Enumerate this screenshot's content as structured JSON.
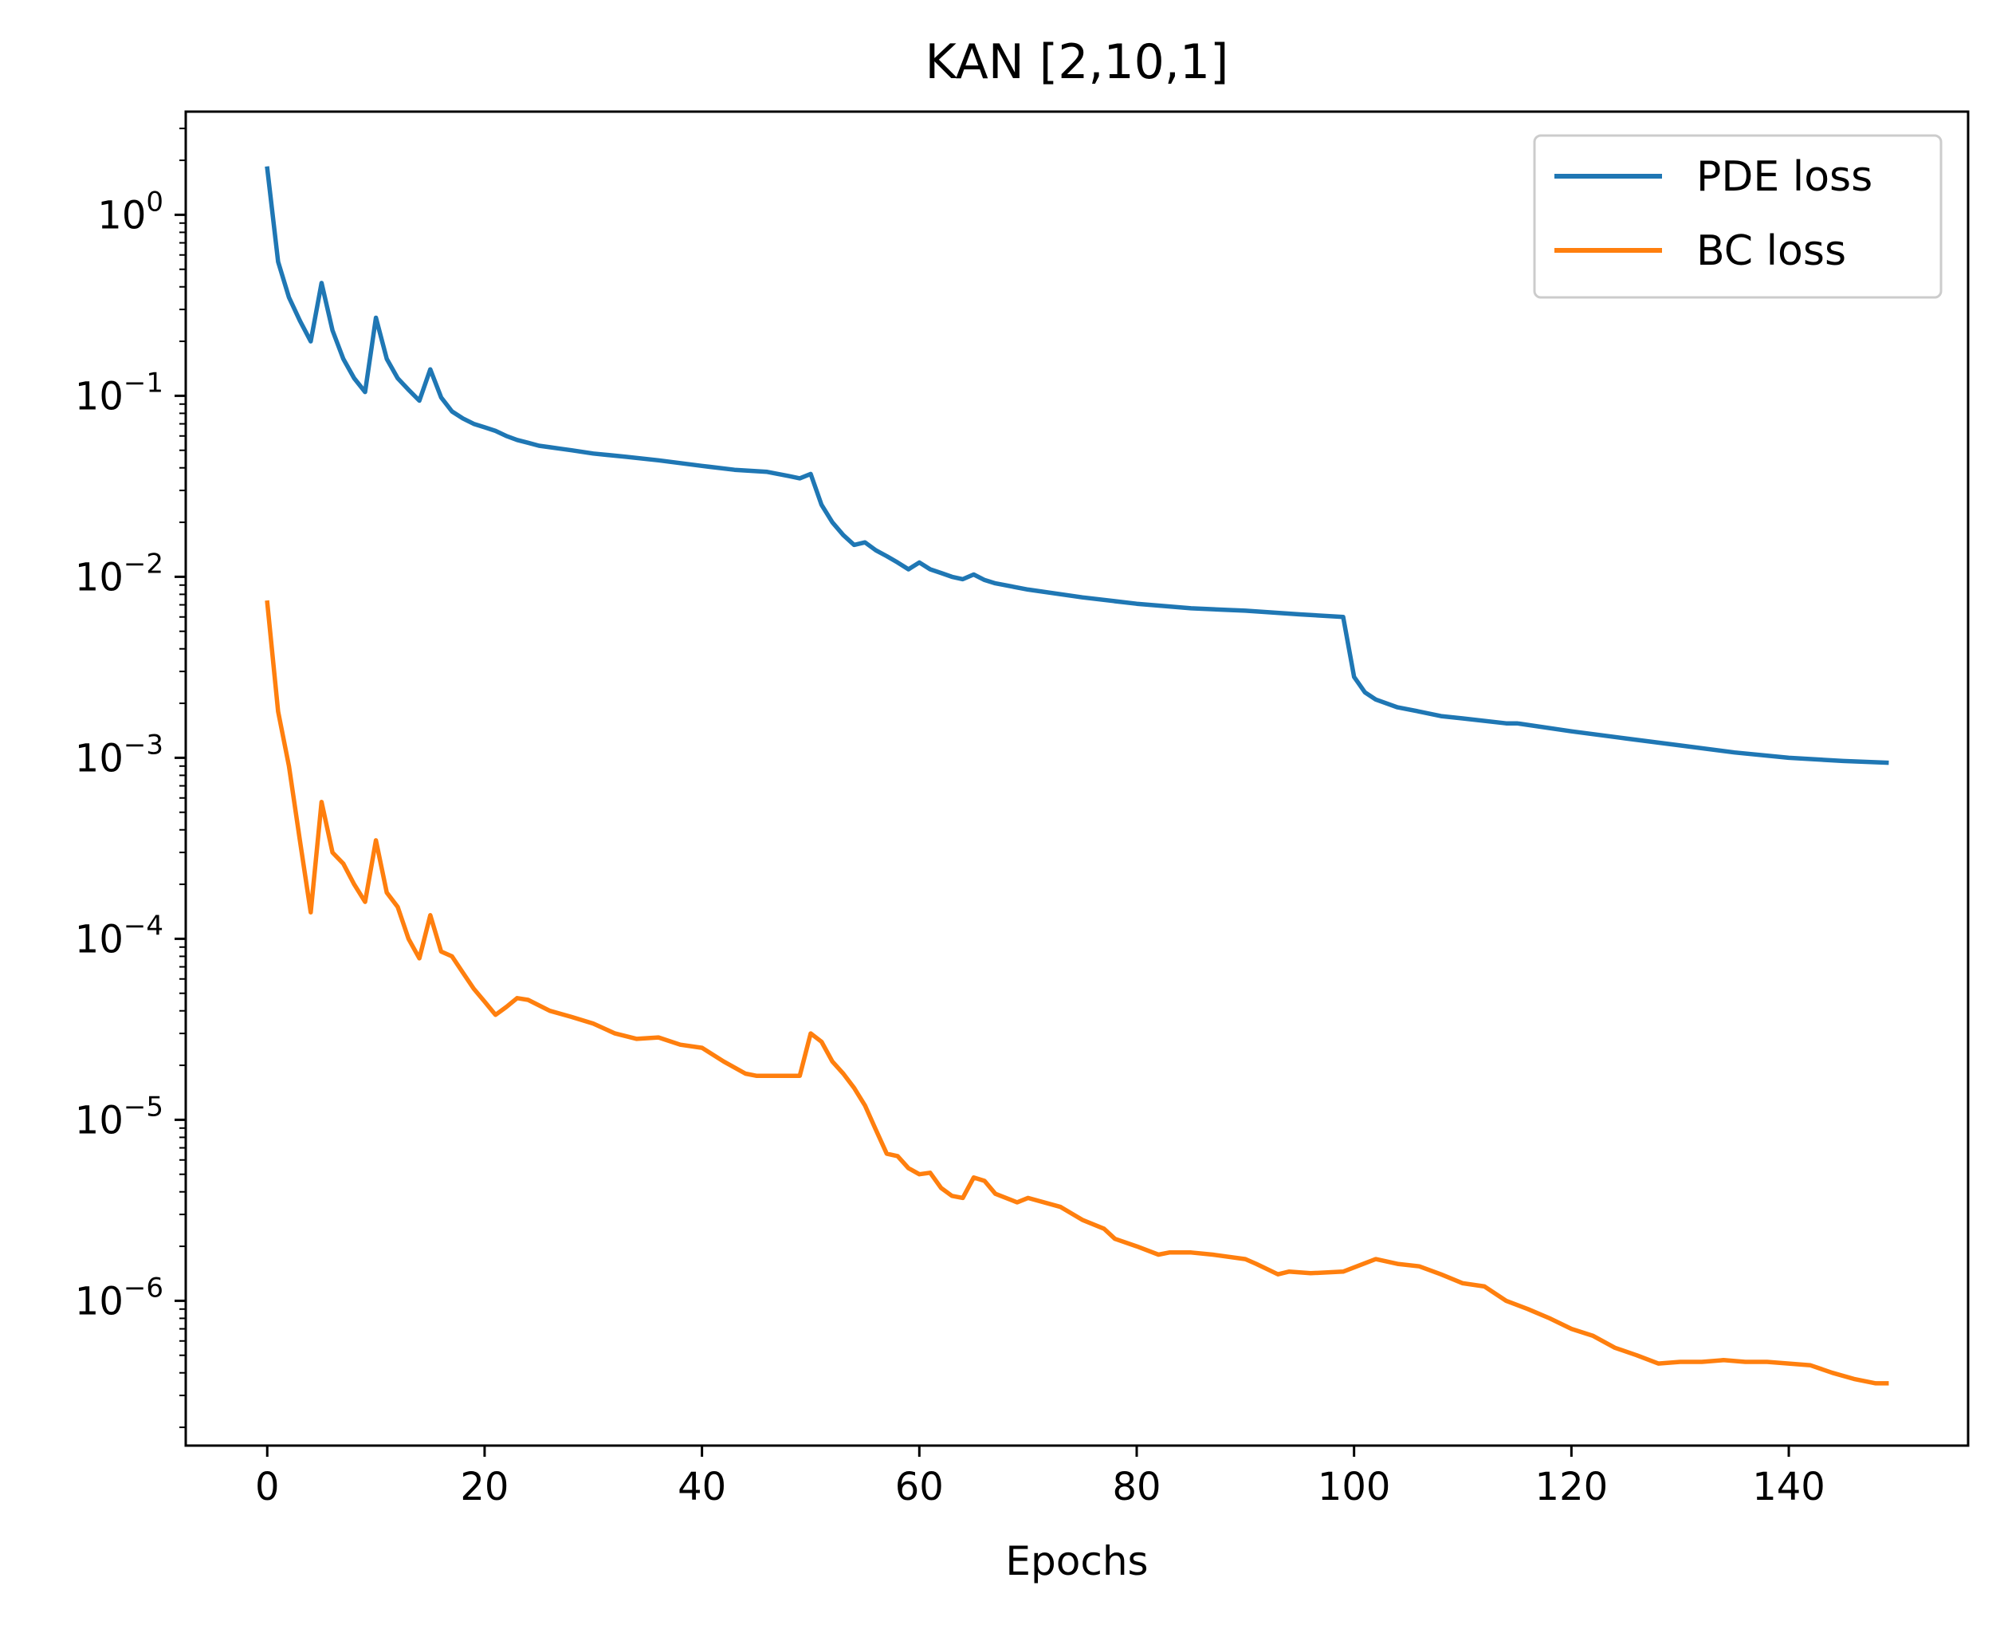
{
  "chart_data": {
    "type": "line",
    "title": "KAN [2,10,1]",
    "xlabel": "Epochs",
    "ylabel": "",
    "yscale": "log",
    "xlim": [
      -7.5,
      156.5
    ],
    "ylim_log10": [
      -6.8,
      0.57
    ],
    "x_ticks": [
      0,
      20,
      40,
      60,
      80,
      100,
      120,
      140
    ],
    "y_ticks": [
      {
        "exp": 0,
        "base": "10",
        "power": "0"
      },
      {
        "exp": -1,
        "base": "10",
        "power": "−1"
      },
      {
        "exp": -2,
        "base": "10",
        "power": "−2"
      },
      {
        "exp": -3,
        "base": "10",
        "power": "−3"
      },
      {
        "exp": -4,
        "base": "10",
        "power": "−4"
      },
      {
        "exp": -5,
        "base": "10",
        "power": "−5"
      },
      {
        "exp": -6,
        "base": "10",
        "power": "−6"
      }
    ],
    "legend": {
      "location": "top-right",
      "entries": [
        "PDE loss",
        "BC loss"
      ]
    },
    "series": [
      {
        "name": "PDE loss",
        "color": "#1f77b4",
        "points": [
          [
            0,
            1.8
          ],
          [
            1,
            0.55
          ],
          [
            2,
            0.35
          ],
          [
            3,
            0.26
          ],
          [
            4,
            0.2
          ],
          [
            5,
            0.42
          ],
          [
            6,
            0.23
          ],
          [
            7,
            0.16
          ],
          [
            8,
            0.125
          ],
          [
            9,
            0.105
          ],
          [
            10,
            0.27
          ],
          [
            11,
            0.16
          ],
          [
            12,
            0.125
          ],
          [
            13,
            0.108
          ],
          [
            14,
            0.094
          ],
          [
            15,
            0.14
          ],
          [
            16,
            0.098
          ],
          [
            17,
            0.082
          ],
          [
            18,
            0.075
          ],
          [
            19,
            0.07
          ],
          [
            20,
            0.067
          ],
          [
            21,
            0.064
          ],
          [
            22,
            0.06
          ],
          [
            23,
            0.057
          ],
          [
            24,
            0.055
          ],
          [
            25,
            0.053
          ],
          [
            26,
            0.052
          ],
          [
            27,
            0.051
          ],
          [
            28,
            0.05
          ],
          [
            30,
            0.048
          ],
          [
            33,
            0.046
          ],
          [
            36,
            0.044
          ],
          [
            40,
            0.041
          ],
          [
            43,
            0.039
          ],
          [
            46,
            0.038
          ],
          [
            48,
            0.036
          ],
          [
            49,
            0.035
          ],
          [
            50,
            0.037
          ],
          [
            51,
            0.025
          ],
          [
            52,
            0.02
          ],
          [
            53,
            0.017
          ],
          [
            54,
            0.015
          ],
          [
            55,
            0.0155
          ],
          [
            56,
            0.014
          ],
          [
            57,
            0.013
          ],
          [
            58,
            0.012
          ],
          [
            59,
            0.011
          ],
          [
            60,
            0.012
          ],
          [
            61,
            0.011
          ],
          [
            62,
            0.0105
          ],
          [
            63,
            0.01
          ],
          [
            64,
            0.0097
          ],
          [
            65,
            0.0103
          ],
          [
            66,
            0.0096
          ],
          [
            67,
            0.0092
          ],
          [
            70,
            0.0085
          ],
          [
            75,
            0.0077
          ],
          [
            80,
            0.0071
          ],
          [
            85,
            0.0067
          ],
          [
            90,
            0.0065
          ],
          [
            95,
            0.0062
          ],
          [
            99,
            0.006
          ],
          [
            100,
            0.0028
          ],
          [
            101,
            0.0023
          ],
          [
            102,
            0.0021
          ],
          [
            104,
            0.0019
          ],
          [
            106,
            0.0018
          ],
          [
            108,
            0.0017
          ],
          [
            110,
            0.00165
          ],
          [
            114,
            0.00155
          ],
          [
            115,
            0.00155
          ],
          [
            120,
            0.0014
          ],
          [
            125,
            0.00128
          ],
          [
            130,
            0.00117
          ],
          [
            135,
            0.00107
          ],
          [
            140,
            0.001
          ],
          [
            145,
            0.00096
          ],
          [
            149,
            0.00094
          ]
        ]
      },
      {
        "name": "BC loss",
        "color": "#ff7f0e",
        "points": [
          [
            0,
            0.0072
          ],
          [
            1,
            0.0018
          ],
          [
            2,
            0.0009
          ],
          [
            3,
            0.00035
          ],
          [
            4,
            0.00014
          ],
          [
            5,
            0.00057
          ],
          [
            6,
            0.0003
          ],
          [
            7,
            0.00026
          ],
          [
            8,
            0.0002
          ],
          [
            9,
            0.00016
          ],
          [
            10,
            0.00035
          ],
          [
            11,
            0.00018
          ],
          [
            12,
            0.00015
          ],
          [
            13,
            0.0001
          ],
          [
            14,
            7.8e-05
          ],
          [
            15,
            0.000135
          ],
          [
            16,
            8.5e-05
          ],
          [
            17,
            8e-05
          ],
          [
            18,
            6.5e-05
          ],
          [
            19,
            5.3e-05
          ],
          [
            20,
            4.5e-05
          ],
          [
            21,
            3.8e-05
          ],
          [
            22,
            4.2e-05
          ],
          [
            23,
            4.7e-05
          ],
          [
            24,
            4.6e-05
          ],
          [
            26,
            4e-05
          ],
          [
            28,
            3.7e-05
          ],
          [
            30,
            3.4e-05
          ],
          [
            32,
            3e-05
          ],
          [
            34,
            2.8e-05
          ],
          [
            36,
            2.85e-05
          ],
          [
            38,
            2.6e-05
          ],
          [
            40,
            2.5e-05
          ],
          [
            42,
            2.1e-05
          ],
          [
            44,
            1.8e-05
          ],
          [
            45,
            1.75e-05
          ],
          [
            47,
            1.75e-05
          ],
          [
            49,
            1.75e-05
          ],
          [
            50,
            3e-05
          ],
          [
            51,
            2.7e-05
          ],
          [
            52,
            2.1e-05
          ],
          [
            53,
            1.8e-05
          ],
          [
            54,
            1.5e-05
          ],
          [
            55,
            1.2e-05
          ],
          [
            56,
            8.8e-06
          ],
          [
            57,
            6.5e-06
          ],
          [
            58,
            6.3e-06
          ],
          [
            59,
            5.4e-06
          ],
          [
            60,
            5e-06
          ],
          [
            61,
            5.1e-06
          ],
          [
            62,
            4.2e-06
          ],
          [
            63,
            3.8e-06
          ],
          [
            64,
            3.7e-06
          ],
          [
            65,
            4.8e-06
          ],
          [
            66,
            4.6e-06
          ],
          [
            67,
            3.9e-06
          ],
          [
            69,
            3.5e-06
          ],
          [
            70,
            3.7e-06
          ],
          [
            73,
            3.3e-06
          ],
          [
            75,
            2.8e-06
          ],
          [
            77,
            2.5e-06
          ],
          [
            78,
            2.2e-06
          ],
          [
            80,
            2e-06
          ],
          [
            82,
            1.8e-06
          ],
          [
            83,
            1.85e-06
          ],
          [
            85,
            1.85e-06
          ],
          [
            87,
            1.8e-06
          ],
          [
            90,
            1.7e-06
          ],
          [
            91,
            1.6e-06
          ],
          [
            93,
            1.4e-06
          ],
          [
            94,
            1.45e-06
          ],
          [
            96,
            1.42e-06
          ],
          [
            99,
            1.45e-06
          ],
          [
            102,
            1.7e-06
          ],
          [
            104,
            1.6e-06
          ],
          [
            106,
            1.55e-06
          ],
          [
            108,
            1.4e-06
          ],
          [
            110,
            1.25e-06
          ],
          [
            112,
            1.2e-06
          ],
          [
            114,
            1e-06
          ],
          [
            116,
            9e-07
          ],
          [
            118,
            8e-07
          ],
          [
            120,
            7e-07
          ],
          [
            122,
            6.4e-07
          ],
          [
            124,
            5.5e-07
          ],
          [
            126,
            5e-07
          ],
          [
            128,
            4.5e-07
          ],
          [
            130,
            4.6e-07
          ],
          [
            132,
            4.6e-07
          ],
          [
            134,
            4.7e-07
          ],
          [
            136,
            4.6e-07
          ],
          [
            138,
            4.6e-07
          ],
          [
            140,
            4.5e-07
          ],
          [
            142,
            4.4e-07
          ],
          [
            144,
            4e-07
          ],
          [
            146,
            3.7e-07
          ],
          [
            148,
            3.5e-07
          ],
          [
            149,
            3.5e-07
          ]
        ]
      }
    ]
  }
}
